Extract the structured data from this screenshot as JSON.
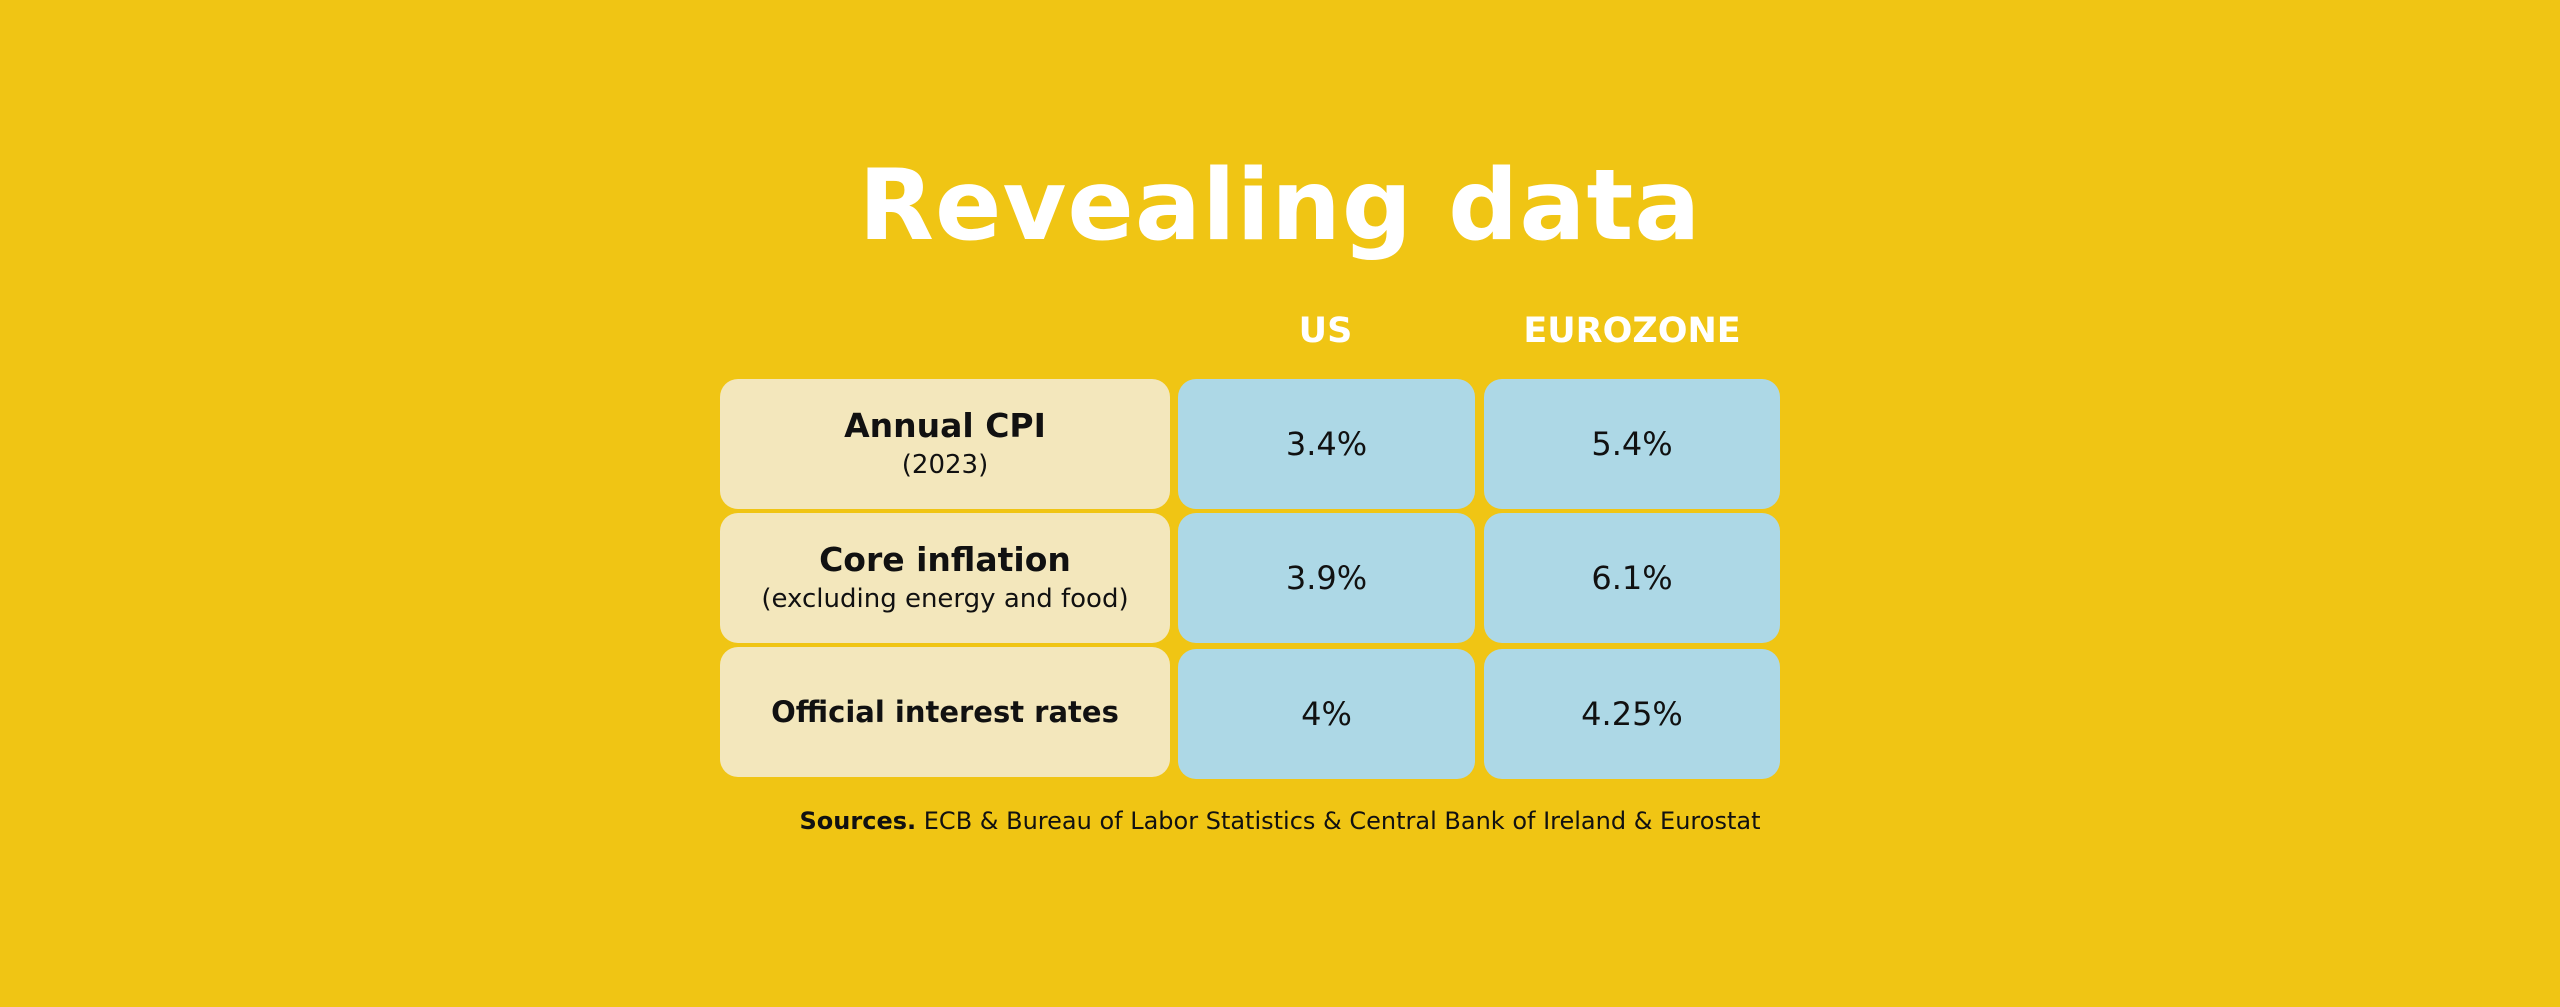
{
  "title": "Revealing data",
  "columns": {
    "us": "US",
    "eurozone": "EUROZONE"
  },
  "rows": [
    {
      "label": "Annual CPI",
      "sublabel": "(2023)",
      "us": "3.4%",
      "eurozone": "5.4%"
    },
    {
      "label": "Core inflation",
      "sublabel": "(excluding energy and food)",
      "us": "3.9%",
      "eurozone": "6.1%"
    },
    {
      "label": "Official interest rates",
      "sublabel": "",
      "us": "4%",
      "eurozone": "4.25%"
    }
  ],
  "sources": {
    "label": "Sources.",
    "text": "ECB & Bureau of Labor Statistics & Central Bank of Ireland & Eurostat"
  },
  "colors": {
    "background": "#f0c514",
    "label_cell": "#f3e7bc",
    "value_cell": "#add8e6",
    "title_text": "#ffffff"
  }
}
